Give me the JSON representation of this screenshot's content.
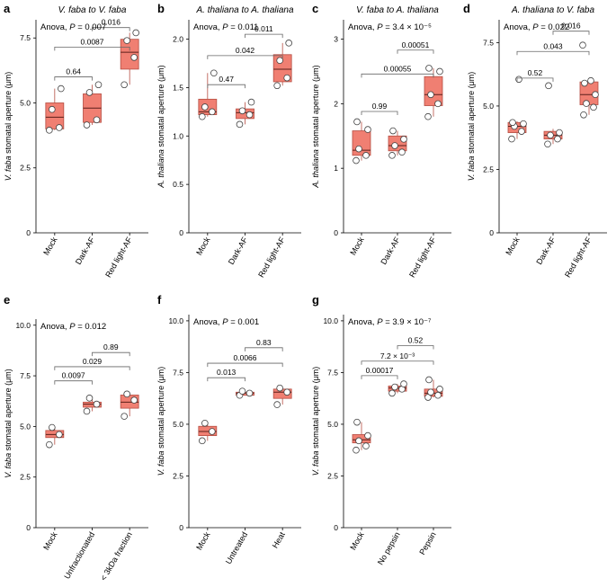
{
  "colors": {
    "box_fill": "#f07f72",
    "box_stroke": "#b54d42",
    "median": "#5a1f1a",
    "point_fill": "#ffffff",
    "point_stroke": "#444444",
    "axis": "#000000"
  },
  "chart_data": [
    {
      "panel": "a",
      "type": "box",
      "title": "V. faba to V. faba",
      "ylabel": "V. faba stomatal aperture (μm)",
      "yticks": [
        "0",
        "2.5",
        "5.0",
        "7.5"
      ],
      "ytick_values": [
        0,
        2.5,
        5.0,
        7.5
      ],
      "ylim": [
        0,
        8.2
      ],
      "anova": "Anova, P = 0.007",
      "categories": [
        "Mock",
        "Dark-AF",
        "Red light-AF"
      ],
      "boxes": [
        {
          "q1": 4.0,
          "median": 4.45,
          "q3": 5.0,
          "wlow": 3.95,
          "whigh": 5.55,
          "points": [
            3.95,
            4.05,
            4.75,
            5.55
          ]
        },
        {
          "q1": 4.25,
          "median": 4.8,
          "q3": 5.35,
          "wlow": 4.15,
          "whigh": 5.7,
          "points": [
            4.15,
            4.35,
            5.4,
            5.7
          ]
        },
        {
          "q1": 6.3,
          "median": 6.95,
          "q3": 7.45,
          "wlow": 5.7,
          "whigh": 7.7,
          "points": [
            5.7,
            6.75,
            7.4,
            7.7
          ]
        }
      ],
      "comparisons": [
        {
          "from": 0,
          "to": 1,
          "level": 6.0,
          "label": "0.64"
        },
        {
          "from": 0,
          "to": 2,
          "level": 7.15,
          "label": "0.0087"
        },
        {
          "from": 1,
          "to": 2,
          "level": 7.9,
          "label": "0.016"
        }
      ]
    },
    {
      "panel": "b",
      "type": "box",
      "title": "A. thaliana to A. thaliana",
      "ylabel": "A. thaliana stomatal aperture (μm)",
      "yticks": [
        "0",
        "0.5",
        "1.0",
        "1.5",
        "2.0"
      ],
      "ytick_values": [
        0,
        0.5,
        1.0,
        1.5,
        2.0
      ],
      "ylim": [
        0,
        2.2
      ],
      "anova": "Anova, P = 0.011",
      "categories": [
        "Mock",
        "Dark-AF",
        "Red light-AF"
      ],
      "boxes": [
        {
          "q1": 1.22,
          "median": 1.25,
          "q3": 1.38,
          "wlow": 1.2,
          "whigh": 1.65,
          "points": [
            1.2,
            1.25,
            1.3,
            1.65
          ]
        },
        {
          "q1": 1.18,
          "median": 1.24,
          "q3": 1.28,
          "wlow": 1.12,
          "whigh": 1.35,
          "points": [
            1.12,
            1.22,
            1.26,
            1.35
          ]
        },
        {
          "q1": 1.56,
          "median": 1.69,
          "q3": 1.84,
          "wlow": 1.52,
          "whigh": 1.96,
          "points": [
            1.52,
            1.6,
            1.78,
            1.96
          ]
        }
      ],
      "comparisons": [
        {
          "from": 0,
          "to": 1,
          "level": 1.53,
          "label": "0.47"
        },
        {
          "from": 0,
          "to": 2,
          "level": 1.83,
          "label": "0.042"
        },
        {
          "from": 1,
          "to": 2,
          "level": 2.05,
          "label": "0.011"
        }
      ]
    },
    {
      "panel": "c",
      "type": "box",
      "title": "V. faba to A. thaliana",
      "ylabel": "A. thaliana stomatal aperture (μm)",
      "yticks": [
        "0",
        "1",
        "2",
        "3"
      ],
      "ytick_values": [
        0,
        1,
        2,
        3
      ],
      "ylim": [
        0,
        3.3
      ],
      "anova": "Anova, P = 3.4 × 10⁻⁵",
      "categories": [
        "Mock",
        "Dark-AF",
        "Red light-AF"
      ],
      "boxes": [
        {
          "q1": 1.2,
          "median": 1.28,
          "q3": 1.58,
          "wlow": 1.12,
          "whigh": 1.72,
          "points": [
            1.12,
            1.2,
            1.3,
            1.6,
            1.72
          ]
        },
        {
          "q1": 1.27,
          "median": 1.35,
          "q3": 1.5,
          "wlow": 1.2,
          "whigh": 1.58,
          "points": [
            1.2,
            1.25,
            1.35,
            1.45,
            1.58
          ]
        },
        {
          "q1": 1.97,
          "median": 2.14,
          "q3": 2.42,
          "wlow": 1.8,
          "whigh": 2.55,
          "points": [
            1.8,
            2.0,
            2.14,
            2.5,
            2.55
          ]
        }
      ],
      "comparisons": [
        {
          "from": 0,
          "to": 1,
          "level": 1.88,
          "label": "0.99"
        },
        {
          "from": 0,
          "to": 2,
          "level": 2.46,
          "label": "0.00055"
        },
        {
          "from": 1,
          "to": 2,
          "level": 2.83,
          "label": "0.00051"
        }
      ]
    },
    {
      "panel": "d",
      "type": "box",
      "title": "A. thaliana to V. faba",
      "ylabel": "V. faba stomatal aperture (μm)",
      "yticks": [
        "0",
        "2.5",
        "5.0",
        "7.5"
      ],
      "ytick_values": [
        0,
        2.5,
        5.0,
        7.5
      ],
      "ylim": [
        0,
        8.4
      ],
      "anova": "Anova, P = 0.022",
      "categories": [
        "Mock",
        "Dark-AF",
        "Red light-AF"
      ],
      "boxes": [
        {
          "q1": 3.95,
          "median": 4.2,
          "q3": 4.35,
          "wlow": 3.7,
          "whigh": 4.4,
          "points": [
            3.7,
            4.0,
            4.2,
            4.3,
            4.35,
            6.05
          ]
        },
        {
          "q1": 3.7,
          "median": 3.85,
          "q3": 4.0,
          "wlow": 3.5,
          "whigh": 4.1,
          "points": [
            3.5,
            3.7,
            3.85,
            3.95,
            5.8
          ]
        },
        {
          "q1": 5.05,
          "median": 5.45,
          "q3": 5.95,
          "wlow": 4.65,
          "whigh": 6.0,
          "points": [
            4.65,
            4.95,
            5.1,
            5.45,
            5.9,
            6.0,
            7.4
          ]
        }
      ],
      "comparisons": [
        {
          "from": 0,
          "to": 1,
          "level": 6.1,
          "label": "0.52"
        },
        {
          "from": 0,
          "to": 2,
          "level": 7.15,
          "label": "0.043"
        },
        {
          "from": 1,
          "to": 2,
          "level": 7.95,
          "label": "0.016"
        }
      ]
    },
    {
      "panel": "e",
      "type": "box",
      "title": "",
      "ylabel": "V. faba stomatal aperture (μm)",
      "yticks": [
        "0",
        "2.5",
        "5.0",
        "7.5",
        "10.0"
      ],
      "ytick_values": [
        0,
        2.5,
        5.0,
        7.5,
        10.0
      ],
      "ylim": [
        0,
        10.3
      ],
      "anova": "Anova, P = 0.012",
      "categories": [
        "Mock",
        "Unfractionated",
        "< 3kDa fraction"
      ],
      "boxes": [
        {
          "q1": 4.45,
          "median": 4.6,
          "q3": 4.8,
          "wlow": 4.1,
          "whigh": 4.95,
          "points": [
            4.1,
            4.6,
            4.95
          ]
        },
        {
          "q1": 5.95,
          "median": 6.1,
          "q3": 6.2,
          "wlow": 5.75,
          "whigh": 6.4,
          "points": [
            5.75,
            6.1,
            6.4
          ]
        },
        {
          "q1": 5.9,
          "median": 6.2,
          "q3": 6.55,
          "wlow": 5.5,
          "whigh": 6.6,
          "points": [
            5.5,
            6.3,
            6.6
          ]
        }
      ],
      "comparisons": [
        {
          "from": 0,
          "to": 1,
          "level": 7.25,
          "label": "0.0097"
        },
        {
          "from": 0,
          "to": 2,
          "level": 7.95,
          "label": "0.029"
        },
        {
          "from": 1,
          "to": 2,
          "level": 8.65,
          "label": "0.89"
        }
      ]
    },
    {
      "panel": "f",
      "type": "box",
      "title": "",
      "ylabel": "V. faba stomatal aperture (μm)",
      "yticks": [
        "0",
        "2.5",
        "5.0",
        "7.5",
        "10.0"
      ],
      "ytick_values": [
        0,
        2.5,
        5.0,
        7.5,
        10.0
      ],
      "ylim": [
        0,
        10.3
      ],
      "anova": "Anova, P = 0.001",
      "categories": [
        "Mock",
        "Untreated",
        "Heat"
      ],
      "boxes": [
        {
          "q1": 4.45,
          "median": 4.65,
          "q3": 4.9,
          "wlow": 4.2,
          "whigh": 5.05,
          "points": [
            4.2,
            4.65,
            5.05
          ]
        },
        {
          "q1": 6.4,
          "median": 6.5,
          "q3": 6.55,
          "wlow": 6.4,
          "whigh": 6.6,
          "points": [
            6.4,
            6.5,
            6.6
          ]
        },
        {
          "q1": 6.25,
          "median": 6.55,
          "q3": 6.7,
          "wlow": 5.95,
          "whigh": 6.75,
          "points": [
            5.95,
            6.55,
            6.75
          ]
        }
      ],
      "comparisons": [
        {
          "from": 0,
          "to": 1,
          "level": 7.25,
          "label": "0.013"
        },
        {
          "from": 0,
          "to": 2,
          "level": 7.95,
          "label": "0.0066"
        },
        {
          "from": 1,
          "to": 2,
          "level": 8.7,
          "label": "0.83"
        }
      ]
    },
    {
      "panel": "g",
      "type": "box",
      "title": "",
      "ylabel": "V. faba stomatal aperture (μm)",
      "yticks": [
        "0",
        "2.5",
        "5.0",
        "7.5",
        "10.0"
      ],
      "ytick_values": [
        0,
        2.5,
        5.0,
        7.5,
        10.0
      ],
      "ylim": [
        0,
        10.3
      ],
      "anova": "Anova, P = 3.9 × 10⁻⁷",
      "categories": [
        "Mock",
        "No pepsin",
        "Pepsin"
      ],
      "boxes": [
        {
          "q1": 4.1,
          "median": 4.25,
          "q3": 4.5,
          "wlow": 3.75,
          "whigh": 5.1,
          "points": [
            3.75,
            3.95,
            4.2,
            4.45,
            5.1
          ]
        },
        {
          "q1": 6.6,
          "median": 6.75,
          "q3": 6.85,
          "wlow": 6.5,
          "whigh": 6.95,
          "points": [
            6.5,
            6.7,
            6.8,
            6.95
          ]
        },
        {
          "q1": 6.35,
          "median": 6.5,
          "q3": 6.7,
          "wlow": 6.3,
          "whigh": 7.15,
          "points": [
            6.3,
            6.4,
            6.55,
            6.7,
            7.15
          ]
        }
      ],
      "comparisons": [
        {
          "from": 0,
          "to": 1,
          "level": 7.35,
          "label": "0.00017"
        },
        {
          "from": 0,
          "to": 2,
          "level": 8.05,
          "label": "7.2 × 10⁻³"
        },
        {
          "from": 1,
          "to": 2,
          "level": 8.8,
          "label": "0.52"
        }
      ]
    }
  ]
}
